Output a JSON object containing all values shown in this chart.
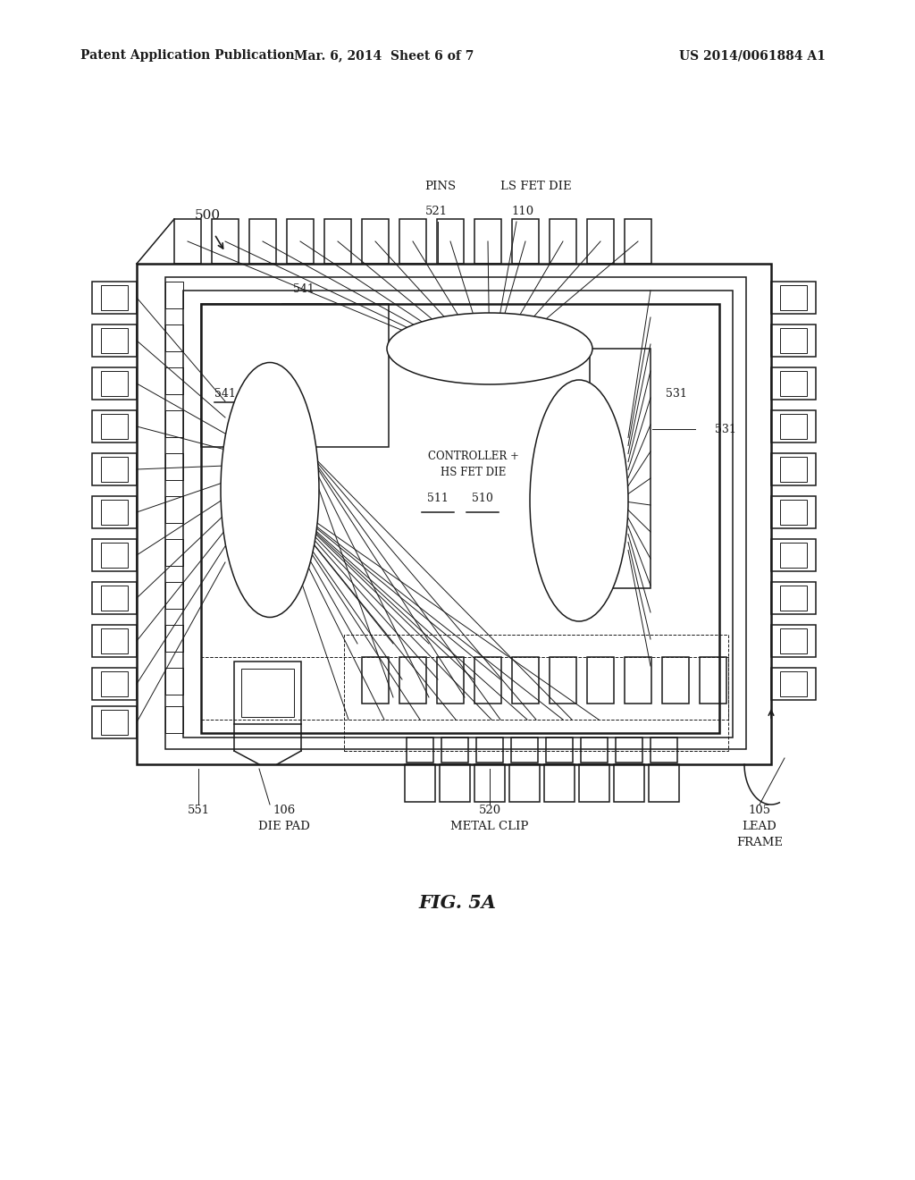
{
  "bg": "#ffffff",
  "line_color": "#1a1a1a",
  "header_left": "Patent Application Publication",
  "header_mid": "Mar. 6, 2014  Sheet 6 of 7",
  "header_right": "US 2014/0061884 A1",
  "fig_label": "FIG. 5A",
  "lbl_500": "500",
  "lbl_pins": "PINS",
  "lbl_521": "521",
  "lbl_ls_fet": "LS FET DIE",
  "lbl_110": "110",
  "lbl_541a": "541",
  "lbl_541b": "541",
  "lbl_531": "531",
  "lbl_ctrl": "CONTROLLER +",
  "lbl_ctrl2": "HS FET DIE",
  "lbl_511": "511",
  "lbl_510": "510",
  "lbl_551": "551",
  "lbl_106": "106",
  "lbl_die_pad": "DIE PAD",
  "lbl_520": "520",
  "lbl_metal_clip": "METAL CLIP",
  "lbl_105": "105",
  "lbl_lead": "LEAD",
  "lbl_frame": "FRAME"
}
